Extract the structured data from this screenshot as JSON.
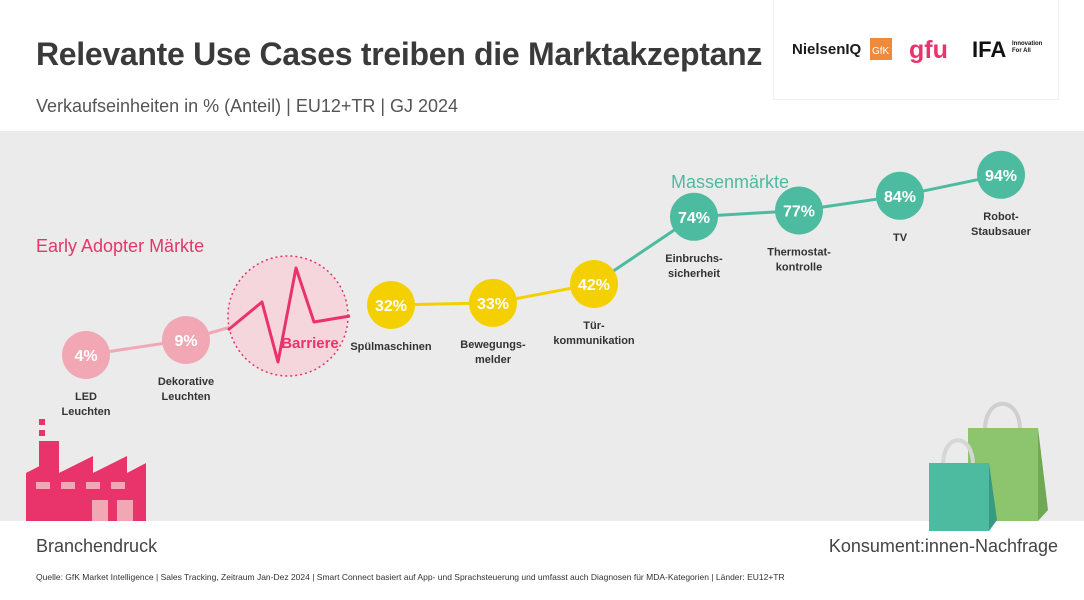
{
  "header": {
    "title": "Relevante Use Cases treiben die Marktakzeptanz",
    "subtitle": "Verkaufseinheiten in % (Anteil) | EU12+TR | GJ 2024"
  },
  "logos": {
    "nielseniq": "NielsenIQ",
    "gfk": "GfK",
    "gfu": "gfu",
    "ifa": "IFA",
    "ifa_tagline_1": "Innovation",
    "ifa_tagline_2": "For All"
  },
  "labels": {
    "early_adopter": "Early Adopter Märkte",
    "mass_market": "Massenmärkte",
    "barrier": "Barriere",
    "industry_push": "Branchendruck",
    "consumer_demand": "Konsument:innen-Nachfrage"
  },
  "footer": {
    "source": "Quelle: GfK Market Intelligence | Sales Tracking, Zeitraum Jan-Dez 2024 | Smart Connect basiert auf App- und Sprachsteuerung und umfasst auch Diagnosen für MDA-Kategorien | Länder: EU12+TR"
  },
  "colors": {
    "early": "#f2a8b4",
    "barrier": "#e8336b",
    "middle": "#f5d000",
    "mass": "#4dbba0",
    "factory": "#e8336b",
    "bag_front": "#4dbba0",
    "bag_back": "#8cc56e"
  },
  "chart_data": {
    "type": "line",
    "title": "Relevante Use Cases treiben die Marktakzeptanz",
    "unit": "%",
    "points": [
      {
        "category": "LED Leuchten",
        "lines": [
          "LED",
          "Leuchten"
        ],
        "value": 4,
        "label": "4%",
        "segment": "early"
      },
      {
        "category": "Dekorative Leuchten",
        "lines": [
          "Dekorative",
          "Leuchten"
        ],
        "value": 9,
        "label": "9%",
        "segment": "early"
      },
      {
        "category": "Spülmaschinen",
        "lines": [
          "Spülmaschinen"
        ],
        "value": 32,
        "label": "32%",
        "segment": "middle"
      },
      {
        "category": "Bewegungsmelder",
        "lines": [
          "Bewegungs-",
          "melder"
        ],
        "value": 33,
        "label": "33%",
        "segment": "middle"
      },
      {
        "category": "Türkommunikation",
        "lines": [
          "Tür-",
          "kommunikation"
        ],
        "value": 42,
        "label": "42%",
        "segment": "middle"
      },
      {
        "category": "Einbruchssicherheit",
        "lines": [
          "Einbruchs-",
          "sicherheit"
        ],
        "value": 74,
        "label": "74%",
        "segment": "mass"
      },
      {
        "category": "Thermostatkontrolle",
        "lines": [
          "Thermostat-",
          "kontrolle"
        ],
        "value": 77,
        "label": "77%",
        "segment": "mass"
      },
      {
        "category": "TV",
        "lines": [
          "TV"
        ],
        "value": 84,
        "label": "84%",
        "segment": "mass"
      },
      {
        "category": "Robot-Staubsauer",
        "lines": [
          "Robot-",
          "Staubsauer"
        ],
        "value": 94,
        "label": "94%",
        "segment": "mass"
      }
    ]
  }
}
